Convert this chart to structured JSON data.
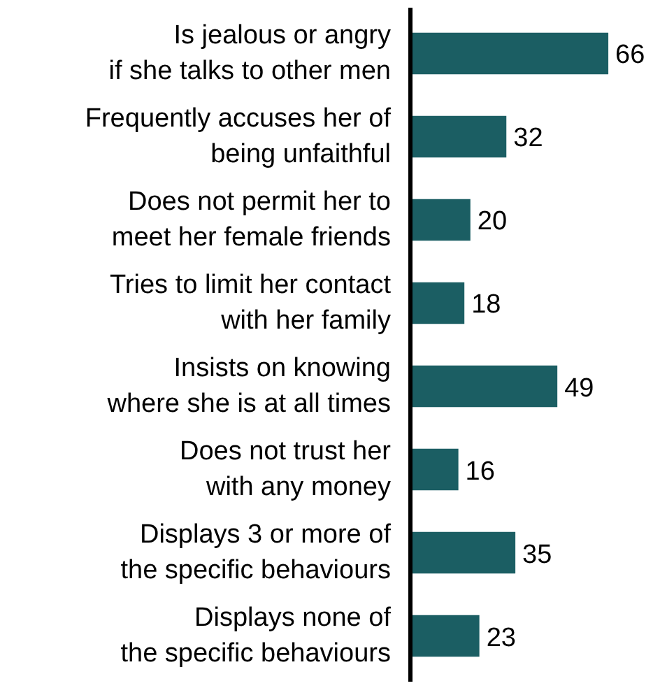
{
  "chart_data": {
    "type": "bar",
    "orientation": "horizontal",
    "categories": [
      "Is jealous or angry\nif she talks to other men",
      "Frequently accuses her of\nbeing unfaithful",
      "Does not permit her to\nmeet her female friends",
      "Tries to limit her contact\nwith her family",
      "Insists on knowing\nwhere she is at all times",
      "Does not trust her\nwith any money",
      "Displays 3 or more of\nthe specific behaviours",
      "Displays none of\nthe specific behaviours"
    ],
    "values": [
      66,
      32,
      20,
      18,
      49,
      16,
      35,
      23
    ],
    "color": "#1b5e63",
    "data_labels": true
  }
}
